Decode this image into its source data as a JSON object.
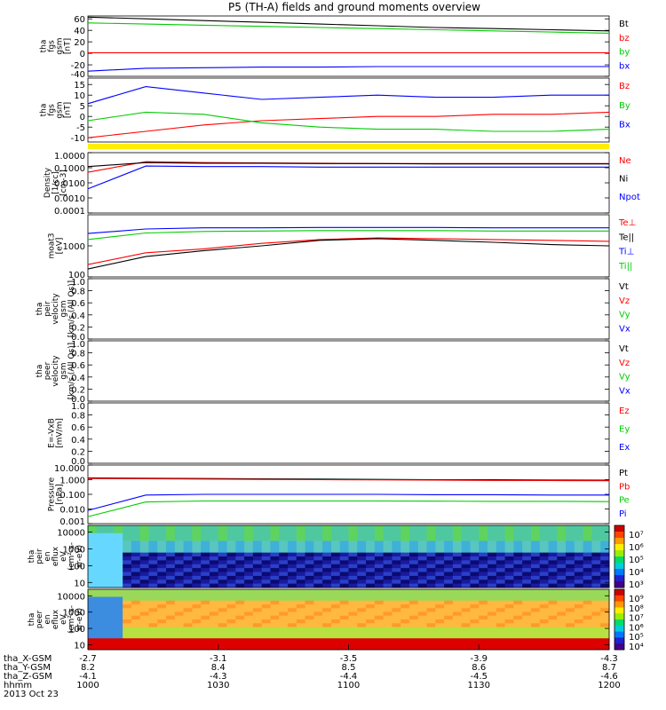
{
  "title": "P5 (TH-A) fields and ground moments overview",
  "chart_data": [
    {
      "type": "line",
      "panel_label": [
        "tha",
        "fgs",
        "gsm",
        "[nT]"
      ],
      "ticks": [
        "60",
        "40",
        "20",
        "0",
        "-20",
        "-40"
      ],
      "tick_values": [
        60,
        40,
        20,
        0,
        -20,
        -40
      ],
      "ylim": [
        -40,
        65
      ],
      "series": [
        {
          "name": "Bt",
          "color": "#000000",
          "values": [
            63,
            60,
            57,
            54,
            51,
            48,
            45,
            43,
            41,
            39
          ]
        },
        {
          "name": "bz",
          "color": "#ff0000",
          "values": [
            1,
            1,
            1,
            1,
            1,
            1,
            1,
            1,
            1,
            1
          ]
        },
        {
          "name": "by",
          "color": "#00cc00",
          "values": [
            53,
            51,
            49,
            47,
            45,
            43,
            41,
            39,
            37,
            35
          ]
        },
        {
          "name": "bx",
          "color": "#0000ff",
          "values": [
            -31,
            -26,
            -25,
            -24,
            -24,
            -23,
            -23,
            -23,
            -23,
            -23
          ]
        }
      ]
    },
    {
      "type": "line",
      "panel_label": [
        "tha",
        "fgs",
        "gsm",
        "[nT]"
      ],
      "ticks": [
        "15",
        "10",
        "5",
        "0",
        "-5",
        "-10"
      ],
      "tick_values": [
        15,
        10,
        5,
        0,
        -5,
        -10
      ],
      "ylim": [
        -12,
        18
      ],
      "series": [
        {
          "name": "Bz",
          "color": "#ff0000",
          "values": [
            -10,
            -7,
            -4,
            -2,
            -1,
            0,
            0,
            1,
            1,
            2
          ]
        },
        {
          "name": "By",
          "color": "#00cc00",
          "values": [
            -2,
            2,
            1,
            -3,
            -5,
            -6,
            -6,
            -7,
            -7,
            -6
          ]
        },
        {
          "name": "Bx",
          "color": "#0000ff",
          "values": [
            6,
            14,
            11,
            8,
            9,
            10,
            9,
            9,
            10,
            10
          ]
        }
      ]
    },
    {
      "type": "line",
      "panel_label": [
        "Density",
        "[1/cc]",
        "[cm-3]"
      ],
      "ticks": [
        "1.0000",
        "0.1000",
        "0.0100",
        "0.0010",
        "0.0001"
      ],
      "tick_values": [
        1,
        0.1,
        0.01,
        0.001,
        0.0001
      ],
      "ylim": [
        0.0001,
        1
      ],
      "log": true,
      "series": [
        {
          "name": "Ne",
          "color": "#ff0000",
          "values": [
            0.05,
            0.25,
            0.22,
            0.21,
            0.2,
            0.19,
            0.19,
            0.19,
            0.19,
            0.19
          ]
        },
        {
          "name": "Ni",
          "color": "#000000",
          "values": [
            0.12,
            0.22,
            0.2,
            0.2,
            0.19,
            0.19,
            0.18,
            0.18,
            0.18,
            0.18
          ]
        },
        {
          "name": "Npot",
          "color": "#0000ff",
          "values": [
            0.004,
            0.13,
            0.12,
            0.12,
            0.11,
            0.11,
            0.11,
            0.11,
            0.11,
            0.11
          ]
        }
      ]
    },
    {
      "type": "line",
      "panel_label": [
        "moat3",
        "[eV]"
      ],
      "ticks": [
        "1000",
        "100"
      ],
      "tick_values": [
        1000,
        100
      ],
      "ylim": [
        100,
        10000
      ],
      "log": true,
      "series": [
        {
          "name": "Te⊥",
          "color": "#ff0000",
          "values": [
            250,
            600,
            800,
            1200,
            1600,
            1800,
            1700,
            1600,
            1500,
            1400
          ]
        },
        {
          "name": "Te||",
          "color": "#000000",
          "values": [
            180,
            450,
            700,
            1000,
            1500,
            1700,
            1500,
            1300,
            1100,
            1000
          ]
        },
        {
          "name": "Ti⊥",
          "color": "#0000ff",
          "values": [
            2500,
            3500,
            3800,
            3800,
            3900,
            3900,
            3900,
            3800,
            3800,
            3800
          ]
        },
        {
          "name": "Ti||",
          "color": "#00cc00",
          "values": [
            1600,
            2600,
            2900,
            3000,
            3100,
            3100,
            3100,
            3000,
            3000,
            3000
          ]
        }
      ]
    },
    {
      "type": "line",
      "panel_label": [
        "tha",
        "peir",
        "velocity",
        "gsm",
        "[km/s (All Qs)]"
      ],
      "ticks": [
        "1.0",
        "0.8",
        "0.6",
        "0.4",
        "0.2",
        "0.0"
      ],
      "tick_values": [
        1,
        0.8,
        0.6,
        0.4,
        0.2,
        0
      ],
      "ylim": [
        0,
        1
      ],
      "series": [
        {
          "name": "Vt",
          "color": "#000000",
          "values": []
        },
        {
          "name": "Vz",
          "color": "#ff0000",
          "values": []
        },
        {
          "name": "Vy",
          "color": "#00cc00",
          "values": []
        },
        {
          "name": "Vx",
          "color": "#0000ff",
          "values": []
        }
      ]
    },
    {
      "type": "line",
      "panel_label": [
        "tha",
        "peer",
        "velocity",
        "gsm",
        "[km/s (All Qs)]"
      ],
      "ticks": [
        "1.0",
        "0.8",
        "0.6",
        "0.4",
        "0.2",
        "0.0"
      ],
      "tick_values": [
        1,
        0.8,
        0.6,
        0.4,
        0.2,
        0
      ],
      "ylim": [
        0,
        1
      ],
      "series": [
        {
          "name": "Vt",
          "color": "#000000",
          "values": []
        },
        {
          "name": "Vz",
          "color": "#ff0000",
          "values": []
        },
        {
          "name": "Vy",
          "color": "#00cc00",
          "values": []
        },
        {
          "name": "Vx",
          "color": "#0000ff",
          "values": []
        }
      ]
    },
    {
      "type": "line",
      "panel_label": [
        "E=-VxB",
        "[mV/m]"
      ],
      "ticks": [
        "1.0",
        "0.8",
        "0.6",
        "0.4",
        "0.2",
        "0.0"
      ],
      "tick_values": [
        1,
        0.8,
        0.6,
        0.4,
        0.2,
        0
      ],
      "ylim": [
        0,
        1
      ],
      "series": [
        {
          "name": "Ez",
          "color": "#ff0000",
          "values": []
        },
        {
          "name": "Ey",
          "color": "#00cc00",
          "values": []
        },
        {
          "name": "Ex",
          "color": "#0000ff",
          "values": []
        }
      ]
    },
    {
      "type": "line",
      "panel_label": [
        "Pressure",
        "[nPa]"
      ],
      "ticks": [
        "10.000",
        "1.000",
        "0.100",
        "0.010",
        "0.001"
      ],
      "tick_values": [
        10,
        1,
        0.1,
        0.01,
        0.001
      ],
      "ylim": [
        0.001,
        10
      ],
      "log": true,
      "series": [
        {
          "name": "Pt",
          "color": "#000000",
          "values": [
            1.3,
            1.25,
            1.2,
            1.15,
            1.1,
            1.05,
            1.0,
            0.98,
            0.95,
            0.92
          ]
        },
        {
          "name": "Pb",
          "color": "#ff0000",
          "values": [
            1.2,
            1.15,
            1.1,
            1.05,
            1.0,
            0.97,
            0.93,
            0.9,
            0.87,
            0.85
          ]
        },
        {
          "name": "Pe",
          "color": "#00cc00",
          "values": [
            0.003,
            0.03,
            0.035,
            0.035,
            0.035,
            0.035,
            0.034,
            0.033,
            0.033,
            0.032
          ]
        },
        {
          "name": "Pi",
          "color": "#0000ff",
          "values": [
            0.008,
            0.09,
            0.1,
            0.1,
            0.1,
            0.1,
            0.095,
            0.095,
            0.09,
            0.09
          ]
        }
      ]
    },
    {
      "type": "heatmap",
      "panel_label": [
        "tha",
        "peir",
        "en",
        "eflux",
        "eV",
        "(cm²-s-",
        "sr-eV)"
      ],
      "ticks": [
        "10000",
        "1000",
        "100",
        "10"
      ],
      "tick_values": [
        10000,
        1000,
        100,
        10
      ],
      "ylim": [
        5,
        25000
      ],
      "log": true,
      "colorbar_ticks": [
        "10⁷",
        "10⁶",
        "10⁵",
        "10⁴",
        "10³"
      ]
    },
    {
      "type": "heatmap",
      "panel_label": [
        "tha",
        "peer",
        "en",
        "eflux",
        "eV",
        "(cm²-s-",
        "sr-eV)"
      ],
      "ticks": [
        "10000",
        "1000",
        "100",
        "10"
      ],
      "tick_values": [
        10000,
        1000,
        100,
        10
      ],
      "ylim": [
        5,
        25000
      ],
      "log": true,
      "colorbar_ticks": [
        "10⁹",
        "10⁸",
        "10⁷",
        "10⁶",
        "10⁵",
        "10⁴"
      ]
    }
  ],
  "xaxis": {
    "rows": [
      {
        "label": "tha_X-GSM",
        "values": [
          "-2.7",
          "-3.1",
          "-3.5",
          "-3.9",
          "-4.3"
        ]
      },
      {
        "label": "tha_Y-GSM",
        "values": [
          "8.2",
          "8.4",
          "8.5",
          "8.6",
          "8.7"
        ]
      },
      {
        "label": "tha_Z-GSM",
        "values": [
          "-4.1",
          "-4.3",
          "-4.4",
          "-4.5",
          "-4.6"
        ]
      },
      {
        "label": "hhmm",
        "values": [
          "1000",
          "1030",
          "1100",
          "1130",
          "1200"
        ]
      }
    ],
    "date": "2013 Oct 23"
  }
}
